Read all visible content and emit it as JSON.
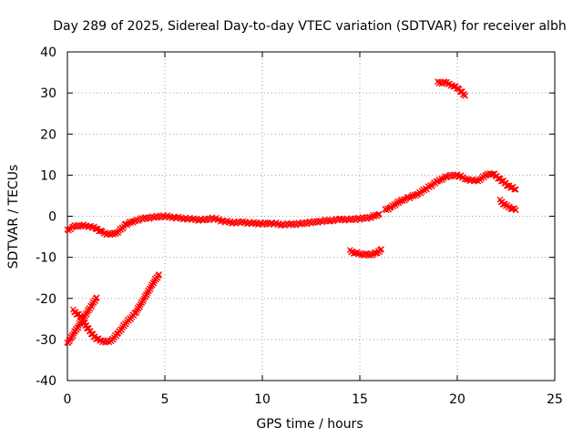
{
  "chart_data": {
    "type": "scatter",
    "title": "Day 289 of 2025, Sidereal Day-to-day VTEC variation (SDTVAR) for receiver albh",
    "xlabel": "GPS time / hours",
    "ylabel": "SDTVAR / TECUs",
    "xlim": [
      0,
      25
    ],
    "ylim": [
      -40,
      40
    ],
    "xticks": [
      "0",
      "5",
      "10",
      "15",
      "20",
      "25"
    ],
    "yticks": [
      "-40",
      "-30",
      "-20",
      "-10",
      "0",
      "10",
      "20",
      "30",
      "40"
    ],
    "grid": true,
    "legend": "none",
    "series_color": "#ff0000",
    "series": [
      {
        "name": "main-trace",
        "points": [
          [
            0.0,
            -3.5
          ],
          [
            0.3,
            -2.5
          ],
          [
            0.7,
            -2.2
          ],
          [
            1.2,
            -2.5
          ],
          [
            1.5,
            -3.0
          ],
          [
            1.8,
            -4.0
          ],
          [
            2.2,
            -4.5
          ],
          [
            2.6,
            -3.8
          ],
          [
            3.0,
            -2.0
          ],
          [
            3.5,
            -1.0
          ],
          [
            4.0,
            -0.5
          ],
          [
            4.5,
            -0.2
          ],
          [
            5.0,
            0.0
          ],
          [
            5.5,
            -0.3
          ],
          [
            6.0,
            -0.5
          ],
          [
            6.5,
            -0.8
          ],
          [
            7.0,
            -0.9
          ],
          [
            7.5,
            -0.5
          ],
          [
            8.0,
            -1.2
          ],
          [
            8.5,
            -1.5
          ],
          [
            9.0,
            -1.5
          ],
          [
            9.5,
            -1.7
          ],
          [
            10.0,
            -1.8
          ],
          [
            10.5,
            -1.7
          ],
          [
            11.0,
            -2.0
          ],
          [
            11.5,
            -2.0
          ],
          [
            12.0,
            -1.8
          ],
          [
            12.5,
            -1.5
          ],
          [
            13.0,
            -1.2
          ],
          [
            13.5,
            -1.0
          ],
          [
            14.0,
            -0.8
          ],
          [
            14.5,
            -0.8
          ],
          [
            15.0,
            -0.6
          ],
          [
            15.5,
            -0.3
          ],
          [
            16.0,
            0.5
          ]
        ]
      },
      {
        "name": "dip-15h",
        "points": [
          [
            14.5,
            -8.5
          ],
          [
            14.8,
            -9.0
          ],
          [
            15.2,
            -9.3
          ],
          [
            15.6,
            -9.3
          ],
          [
            15.9,
            -8.8
          ],
          [
            16.1,
            -8.0
          ]
        ]
      },
      {
        "name": "rise-16-23h",
        "points": [
          [
            16.3,
            1.5
          ],
          [
            16.6,
            2.2
          ],
          [
            17.0,
            3.5
          ],
          [
            17.5,
            4.5
          ],
          [
            18.0,
            5.5
          ],
          [
            18.5,
            7.0
          ],
          [
            19.0,
            8.5
          ],
          [
            19.5,
            9.8
          ],
          [
            20.0,
            10.0
          ],
          [
            20.5,
            9.0
          ],
          [
            21.0,
            8.5
          ],
          [
            21.5,
            10.0
          ],
          [
            21.8,
            10.5
          ],
          [
            22.2,
            9.0
          ],
          [
            22.6,
            7.5
          ],
          [
            23.0,
            6.5
          ]
        ]
      },
      {
        "name": "late-low",
        "points": [
          [
            22.2,
            3.8
          ],
          [
            22.5,
            2.5
          ],
          [
            22.8,
            2.0
          ],
          [
            23.0,
            1.5
          ]
        ]
      },
      {
        "name": "high-arc",
        "points": [
          [
            19.0,
            32.5
          ],
          [
            19.4,
            32.5
          ],
          [
            19.8,
            31.8
          ],
          [
            20.1,
            30.8
          ],
          [
            20.4,
            29.3
          ]
        ]
      },
      {
        "name": "early-rise",
        "points": [
          [
            0.0,
            -31.0
          ],
          [
            0.4,
            -28.0
          ],
          [
            0.8,
            -25.0
          ],
          [
            1.2,
            -22.0
          ],
          [
            1.5,
            -19.8
          ]
        ]
      },
      {
        "name": "early-fall",
        "points": [
          [
            0.3,
            -23.0
          ],
          [
            0.7,
            -24.5
          ],
          [
            1.0,
            -27.0
          ],
          [
            1.4,
            -29.5
          ],
          [
            1.8,
            -30.5
          ],
          [
            2.2,
            -30.5
          ],
          [
            2.6,
            -28.5
          ],
          [
            3.0,
            -26.0
          ],
          [
            3.5,
            -23.5
          ],
          [
            4.0,
            -19.5
          ],
          [
            4.5,
            -15.5
          ],
          [
            4.7,
            -14.2
          ]
        ]
      }
    ]
  }
}
